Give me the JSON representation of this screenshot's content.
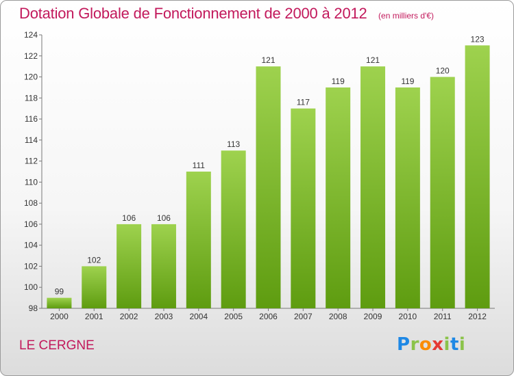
{
  "header": {
    "title": "Dotation Globale de Fonctionnement de 2000 à 2012",
    "unit": "(en milliers d'€)"
  },
  "footer": {
    "place": "LE CERGNE",
    "logo": {
      "letters": [
        "P",
        "r",
        "o",
        "x",
        "i",
        "t",
        "i"
      ],
      "colors": [
        "#1e88e5",
        "#8bc34a",
        "#fb8c00",
        "#e53935",
        "#8bc34a",
        "#1e88e5",
        "#8bc34a"
      ]
    }
  },
  "chart_data": {
    "type": "bar",
    "title": "Dotation Globale de Fonctionnement de 2000 à 2012",
    "unit": "(en milliers d'€)",
    "categories": [
      "2000",
      "2001",
      "2002",
      "2003",
      "2004",
      "2005",
      "2006",
      "2007",
      "2008",
      "2009",
      "2010",
      "2011",
      "2012"
    ],
    "values": [
      99,
      102,
      106,
      106,
      111,
      113,
      121,
      117,
      119,
      121,
      119,
      120,
      123
    ],
    "ylim": [
      98,
      124
    ],
    "yticks": [
      98,
      100,
      102,
      104,
      106,
      108,
      110,
      112,
      114,
      116,
      118,
      120,
      122,
      124
    ],
    "grid": false,
    "data_labels": true,
    "bar_color_top": "#9ed24e",
    "bar_color_bottom": "#5e9c10"
  }
}
